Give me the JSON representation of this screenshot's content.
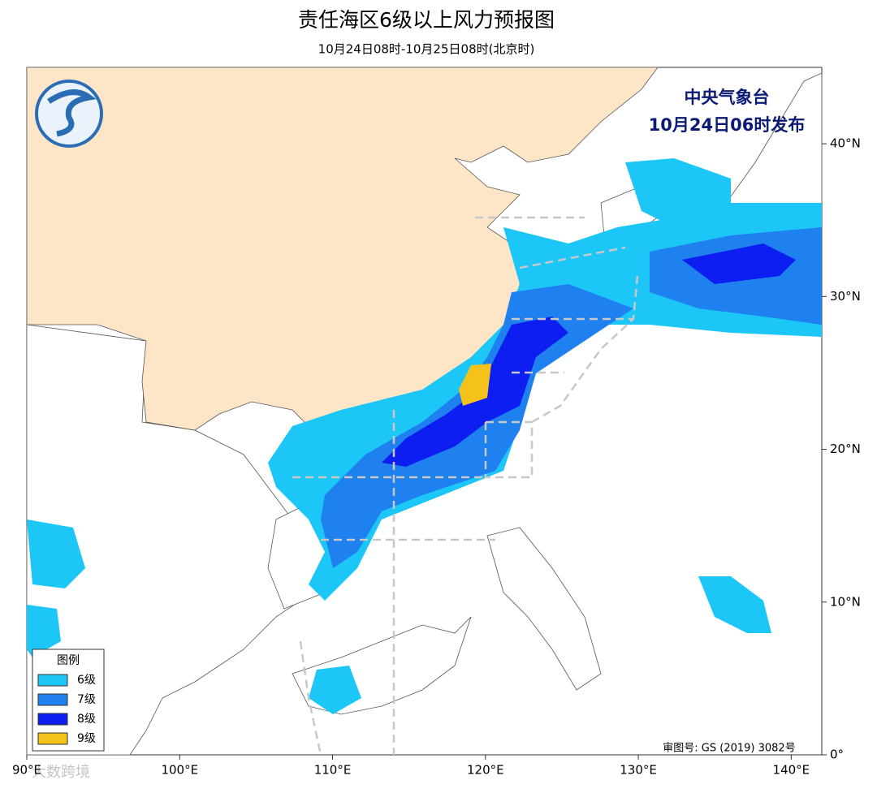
{
  "title": "责任海区6级以上风力预报图",
  "subtitle": "10月24日08时-10月25日08时(北京时)",
  "issuer": "中央气象台",
  "issue_time": "10月24日06时发布",
  "legend": {
    "title": "图例",
    "items": [
      {
        "label": "6级",
        "color": "#1cc6f6"
      },
      {
        "label": "7级",
        "color": "#1f80ef"
      },
      {
        "label": "8级",
        "color": "#0d1ff0"
      },
      {
        "label": "9级",
        "color": "#f4c21b"
      }
    ]
  },
  "map": {
    "xlim": [
      90,
      142
    ],
    "ylim": [
      0,
      45
    ],
    "xticks": [
      {
        "value": 90,
        "label": "90°E"
      },
      {
        "value": 100,
        "label": "100°E"
      },
      {
        "value": 110,
        "label": "110°E"
      },
      {
        "value": 120,
        "label": "120°E"
      },
      {
        "value": 130,
        "label": "130°E"
      },
      {
        "value": 140,
        "label": "140°E"
      }
    ],
    "yticks": [
      {
        "value": 0,
        "label": "0°"
      },
      {
        "value": 10,
        "label": "10°N"
      },
      {
        "value": 20,
        "label": "20°N"
      },
      {
        "value": 30,
        "label": "30°N"
      },
      {
        "value": 40,
        "label": "40°N"
      }
    ]
  },
  "review_number": "审图号: GS (2019) 3082号",
  "watermark": "大数跨境"
}
